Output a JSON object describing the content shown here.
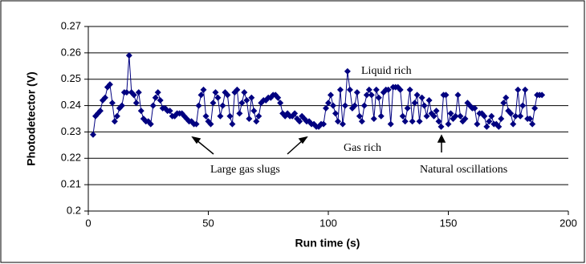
{
  "chart_data": {
    "type": "line",
    "ylabel": "Photodetector (V)",
    "xlabel": "Run time (s)",
    "annotations": [
      "Liquid rich",
      "Gas rich",
      "Large gas slugs",
      "Natural oscillations"
    ],
    "xlim": [
      0,
      200
    ],
    "xticks": [
      0,
      50,
      100,
      150,
      200
    ],
    "ylim": [
      0.2,
      0.27
    ],
    "yticks": [
      0.2,
      0.21,
      0.22,
      0.23,
      0.24,
      0.25,
      0.26,
      0.27
    ],
    "grid": true,
    "series": [
      {
        "color": "#000080",
        "x": [
          2,
          3,
          4,
          5,
          6,
          7,
          8,
          9,
          10,
          11,
          12,
          13,
          14,
          15,
          16,
          17,
          18,
          19,
          20,
          21,
          22,
          23,
          24,
          25,
          26,
          27,
          28,
          29,
          30,
          31,
          32,
          33,
          34,
          35,
          36,
          37,
          38,
          39,
          40,
          41,
          42,
          43,
          44,
          45,
          46,
          47,
          48,
          49,
          50,
          51,
          52,
          53,
          54,
          55,
          56,
          57,
          58,
          59,
          60,
          61,
          62,
          63,
          64,
          65,
          66,
          67,
          68,
          69,
          70,
          71,
          72,
          73,
          74,
          75,
          76,
          77,
          78,
          79,
          80,
          81,
          82,
          83,
          84,
          85,
          86,
          87,
          88,
          89,
          90,
          91,
          92,
          93,
          94,
          95,
          96,
          97,
          98,
          99,
          100,
          101,
          102,
          103,
          104,
          105,
          106,
          107,
          108,
          109,
          110,
          111,
          112,
          113,
          114,
          115,
          116,
          117,
          118,
          119,
          120,
          121,
          122,
          123,
          124,
          125,
          126,
          127,
          128,
          129,
          130,
          131,
          132,
          133,
          134,
          135,
          136,
          137,
          138,
          139,
          140,
          141,
          142,
          143,
          144,
          145,
          146,
          147,
          148,
          149,
          150,
          151,
          152,
          153,
          154,
          155,
          156,
          157,
          158,
          159,
          160,
          161,
          162,
          163,
          164,
          165,
          166,
          167,
          168,
          169,
          170,
          171,
          172,
          173,
          174,
          175,
          176,
          177,
          178,
          179,
          180,
          181,
          182,
          183,
          184,
          185,
          186,
          187,
          188,
          189
        ],
        "values": [
          0.229,
          0.236,
          0.237,
          0.238,
          0.242,
          0.243,
          0.247,
          0.248,
          0.241,
          0.234,
          0.236,
          0.239,
          0.24,
          0.245,
          0.245,
          0.259,
          0.245,
          0.244,
          0.241,
          0.245,
          0.238,
          0.235,
          0.234,
          0.234,
          0.233,
          0.24,
          0.243,
          0.245,
          0.242,
          0.239,
          0.239,
          0.238,
          0.238,
          0.236,
          0.236,
          0.237,
          0.237,
          0.237,
          0.236,
          0.235,
          0.234,
          0.234,
          0.233,
          0.233,
          0.24,
          0.244,
          0.246,
          0.236,
          0.234,
          0.233,
          0.241,
          0.245,
          0.243,
          0.236,
          0.24,
          0.245,
          0.244,
          0.236,
          0.233,
          0.245,
          0.246,
          0.237,
          0.241,
          0.245,
          0.242,
          0.235,
          0.243,
          0.238,
          0.234,
          0.236,
          0.241,
          0.242,
          0.242,
          0.243,
          0.243,
          0.244,
          0.244,
          0.243,
          0.241,
          0.237,
          0.236,
          0.237,
          0.236,
          0.236,
          0.237,
          0.235,
          0.234,
          0.236,
          0.235,
          0.234,
          0.234,
          0.233,
          0.233,
          0.232,
          0.232,
          0.233,
          0.233,
          0.239,
          0.241,
          0.244,
          0.24,
          0.237,
          0.234,
          0.246,
          0.233,
          0.24,
          0.253,
          0.246,
          0.239,
          0.24,
          0.245,
          0.236,
          0.234,
          0.24,
          0.244,
          0.246,
          0.244,
          0.235,
          0.246,
          0.243,
          0.236,
          0.245,
          0.246,
          0.246,
          0.233,
          0.247,
          0.247,
          0.247,
          0.246,
          0.236,
          0.234,
          0.239,
          0.246,
          0.234,
          0.241,
          0.244,
          0.234,
          0.243,
          0.24,
          0.236,
          0.242,
          0.237,
          0.236,
          0.238,
          0.234,
          0.232,
          0.244,
          0.244,
          0.233,
          0.237,
          0.235,
          0.236,
          0.244,
          0.236,
          0.234,
          0.235,
          0.241,
          0.24,
          0.239,
          0.239,
          0.233,
          0.237,
          0.237,
          0.236,
          0.232,
          0.234,
          0.236,
          0.233,
          0.233,
          0.232,
          0.235,
          0.241,
          0.243,
          0.238,
          0.237,
          0.233,
          0.236,
          0.246,
          0.236,
          0.24,
          0.246,
          0.235,
          0.235,
          0.233,
          0.239,
          0.244,
          0.244,
          0.244
        ]
      }
    ]
  }
}
